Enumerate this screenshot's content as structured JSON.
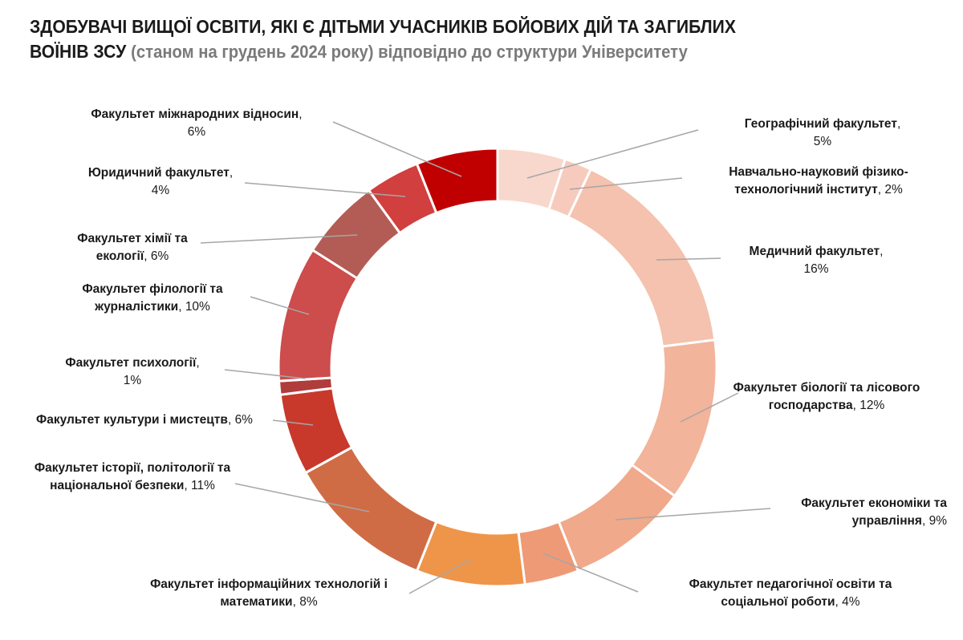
{
  "chart_data": {
    "type": "pie",
    "variant": "donut",
    "title": "ЗДОБУВАЧІ ВИЩОЇ ОСВІТИ, ЯКІ Є ДІТЬМИ УЧАСНИКІВ БОЙОВИХ ДІЙ ТА ЗАГИБЛИХ ВОЇНІВ ЗСУ",
    "subtitle": "(станом на грудень 2024 року) відповідно до структури Університету",
    "unit": "%",
    "legend": "none (data labels with leader lines)",
    "slices": [
      {
        "name": "Географічний факультет",
        "value": 5,
        "color": "#f8d7cc"
      },
      {
        "name": "Навчально-науковий фізико-технологічний інститут",
        "value": 2,
        "color": "#f6cbbe"
      },
      {
        "name": "Медичний факультет",
        "value": 16,
        "color": "#f4c2ae"
      },
      {
        "name": "Факультет біології та лісового господарства",
        "value": 12,
        "color": "#f2b49b"
      },
      {
        "name": "Факультет економіки та управління",
        "value": 9,
        "color": "#f0a98a"
      },
      {
        "name": "Факультет педагогічної освіти та соціальної роботи",
        "value": 4,
        "color": "#ef9a76"
      },
      {
        "name": "Факультет інформаційних технологій і математики",
        "value": 8,
        "color": "#ee954a"
      },
      {
        "name": "Факультет історії, політології та національної безпеки",
        "value": 11,
        "color": "#d06c45"
      },
      {
        "name": "Факультет культури і мистецтв",
        "value": 6,
        "color": "#c8392b"
      },
      {
        "name": "Факультет психології",
        "value": 1,
        "color": "#b03c3c"
      },
      {
        "name": "Факультет філології та журналістики",
        "value": 10,
        "color": "#cd4c4c"
      },
      {
        "name": "Факультет хімії та екології",
        "value": 6,
        "color": "#b35c55"
      },
      {
        "name": "Юридичний факультет",
        "value": 4,
        "color": "#d13f3f"
      },
      {
        "name": "Факультет міжнародних відносин",
        "value": 6,
        "color": "#c00000"
      }
    ]
  }
}
